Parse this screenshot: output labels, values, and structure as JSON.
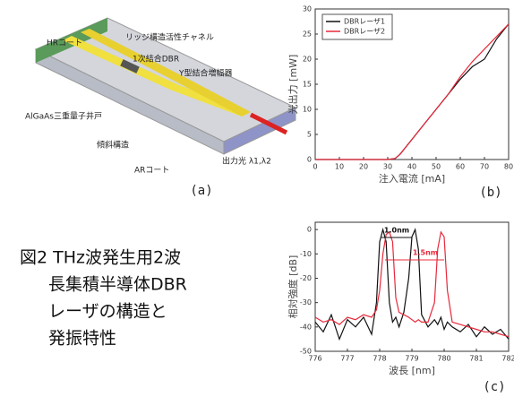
{
  "diagram": {
    "labels": [
      "HRコート",
      "リッジ構造活性チャネル",
      "1次結合DBR",
      "Y型結合増幅器",
      "AlGaAs三重量子井戸",
      "傾斜構造",
      "出力光 λ1,λ2",
      "ARコート"
    ],
    "panel_label": "(a)"
  },
  "caption": {
    "lines": [
      "図2 THz波発生用2波",
      "長集積半導体DBR",
      "レーザの構造と",
      "発振特性"
    ]
  },
  "chart_data": [
    {
      "type": "line",
      "panel_label": "(b)",
      "x_label": "注入電流 [mA]",
      "y_label": "光出力 [mW]",
      "x": [
        0,
        10,
        20,
        30,
        33,
        35,
        40,
        45,
        50,
        55,
        60,
        65,
        70,
        75,
        80
      ],
      "series": [
        {
          "name": "DBRレーザ1",
          "color": "#111111",
          "values": [
            0,
            0,
            0,
            0,
            0.2,
            1,
            4,
            7,
            10,
            13,
            16,
            18.5,
            20,
            24,
            27
          ]
        },
        {
          "name": "DBRレーザ2",
          "color": "#e8283a",
          "values": [
            0,
            0,
            0,
            0,
            0.2,
            1,
            4,
            7,
            10,
            13,
            16.5,
            19.5,
            22,
            24.5,
            27
          ]
        }
      ],
      "xlim": [
        0,
        80
      ],
      "xticks": [
        0,
        10,
        20,
        30,
        40,
        50,
        60,
        70,
        80
      ],
      "ylim": [
        0,
        30
      ],
      "yticks": [
        0,
        5,
        10,
        15,
        20,
        25,
        30
      ],
      "legend": "upper left"
    },
    {
      "type": "line",
      "panel_label": "(c)",
      "x_label": "波長 [nm]",
      "y_label": "相対強度 [dB]",
      "annotations": [
        "1.0nm",
        "1.5nm"
      ],
      "x": [
        776,
        776.25,
        776.5,
        776.75,
        777,
        777.25,
        777.5,
        777.75,
        777.9,
        778.0,
        778.1,
        778.2,
        778.3,
        778.4,
        778.5,
        778.6,
        778.75,
        778.9,
        779.0,
        779.1,
        779.2,
        779.3,
        779.5,
        779.7,
        779.8,
        779.9,
        780.0,
        780.1,
        780.25,
        780.5,
        780.75,
        781,
        781.25,
        781.5,
        781.75,
        782
      ],
      "series": [
        {
          "color": "#111111",
          "values": [
            -38,
            -42,
            -35,
            -45,
            -37,
            -40,
            -36,
            -43,
            -30,
            -5,
            0,
            -5,
            -30,
            -38,
            -36,
            -40,
            -34,
            -20,
            -3,
            0,
            -8,
            -35,
            -40,
            -37,
            -39,
            -36,
            -41,
            -38,
            -40,
            -42,
            -39,
            -44,
            -40,
            -43,
            -41,
            -45
          ]
        },
        {
          "color": "#e8283a",
          "values": [
            -36,
            -38,
            -37,
            -39,
            -36,
            -37,
            -35,
            -36,
            -33,
            -25,
            -10,
            -2,
            -1,
            -5,
            -28,
            -34,
            -35,
            -36,
            -37,
            -38,
            -37,
            -38,
            -38,
            -30,
            -8,
            -1,
            -3,
            -25,
            -38,
            -39,
            -40,
            -41,
            -42,
            -42,
            -43,
            -44
          ]
        }
      ],
      "xlim": [
        776,
        782
      ],
      "xticks": [
        776,
        777,
        778,
        779,
        780,
        781,
        782
      ],
      "ylim": [
        -50,
        3
      ],
      "yticks": [
        0,
        -10,
        -20,
        -30,
        -40,
        -50
      ]
    }
  ]
}
